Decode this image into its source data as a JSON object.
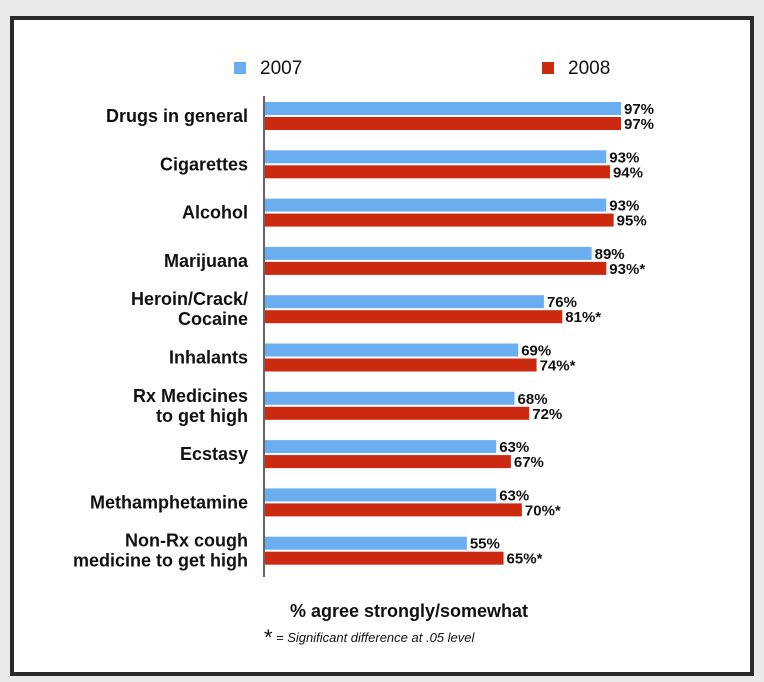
{
  "chart_data": {
    "type": "bar",
    "orientation": "horizontal",
    "categories": [
      [
        "Drugs in general"
      ],
      [
        "Cigarettes"
      ],
      [
        "Alcohol"
      ],
      [
        "Marijuana"
      ],
      [
        "Heroin/Crack/",
        "Cocaine"
      ],
      [
        "Inhalants"
      ],
      [
        "Rx Medicines",
        "to get high"
      ],
      [
        "Ecstasy"
      ],
      [
        "Methamphetamine"
      ],
      [
        "Non-Rx cough",
        "medicine to get high"
      ]
    ],
    "series": [
      {
        "name": "2007",
        "color": "#6aaef0",
        "values": [
          97,
          93,
          93,
          89,
          76,
          69,
          68,
          63,
          63,
          55
        ],
        "labels": [
          "97%",
          "93%",
          "93%",
          "89%",
          "76%",
          "69%",
          "68%",
          "63%",
          "63%",
          "55%"
        ]
      },
      {
        "name": "2008",
        "color": "#cc2a10",
        "values": [
          97,
          94,
          95,
          93,
          81,
          74,
          72,
          67,
          70,
          65
        ],
        "labels": [
          "97%",
          "94%",
          "95%",
          "93%*",
          "81%*",
          "74%*",
          "72%",
          "67%",
          "70%*",
          "65%*"
        ]
      }
    ],
    "xlim": [
      0,
      100
    ],
    "xlabel": "% agree strongly/somewhat",
    "footnote": {
      "symbol": "*",
      "text": "= Significant difference at .05 level"
    },
    "legend_position": "top",
    "grid": false
  }
}
